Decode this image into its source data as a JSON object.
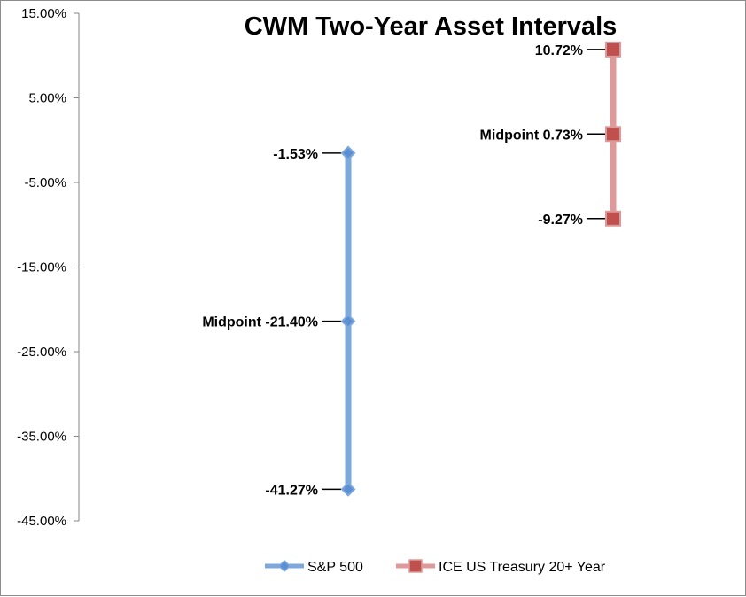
{
  "chart_data": {
    "type": "line",
    "title": "CWM Two-Year Asset Intervals",
    "xlabel": "",
    "ylabel": "",
    "ylim": [
      -0.45,
      0.15
    ],
    "y_ticks": [
      0.15,
      0.05,
      -0.05,
      -0.15,
      -0.25,
      -0.35,
      -0.45
    ],
    "y_tick_labels": [
      "15.00%",
      "5.00%",
      "-5.00%",
      "-15.00%",
      "-25.00%",
      "-35.00%",
      "-45.00%"
    ],
    "grid": false,
    "legend_position": "bottom",
    "series": [
      {
        "name": "S&P 500",
        "color": "#7ea8dc",
        "marker_color": "#5b8fd4",
        "marker": "diamond",
        "x_index": 0,
        "values": [
          -0.0153,
          -0.214,
          -0.4127
        ],
        "labels": [
          "-1.53%",
          "Midpoint -21.40%",
          "-41.27%"
        ]
      },
      {
        "name": "ICE US Treasury 20+ Year",
        "color": "#de9a9a",
        "marker_color": "#c0504d",
        "marker": "square",
        "x_index": 1,
        "values": [
          0.1072,
          0.0073,
          -0.0927
        ],
        "labels": [
          "10.72%",
          "Midpoint 0.73%",
          "-9.27%"
        ]
      }
    ]
  }
}
